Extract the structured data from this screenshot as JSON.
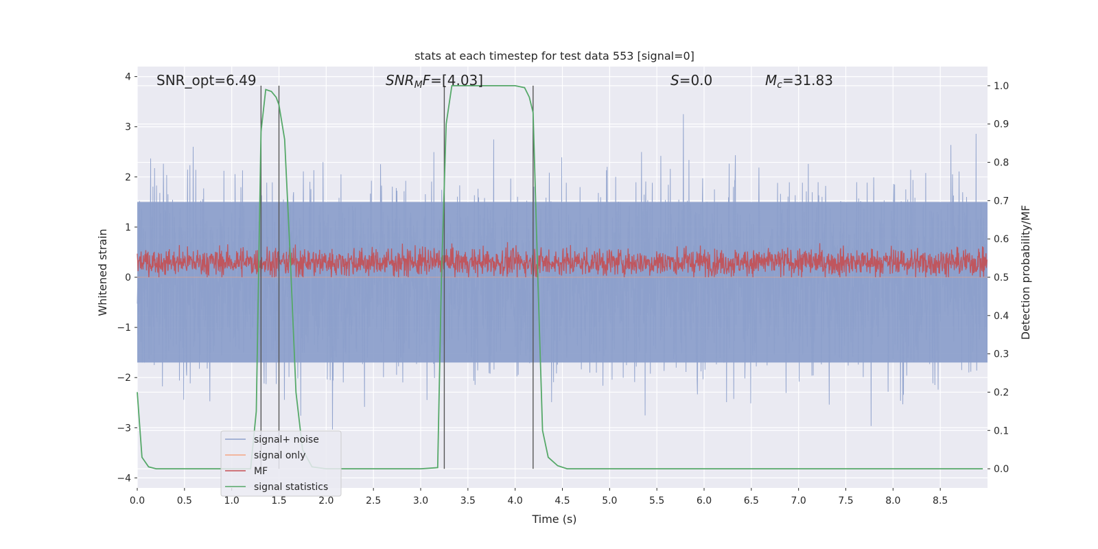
{
  "chart_data": {
    "type": "line",
    "title": "stats at each timestep for test data 553 [signal=0]",
    "xlabel": "Time (s)",
    "ylabel": "Whitened strain",
    "y2label": "Detection probability/MF",
    "xlim": [
      0.0,
      9.0
    ],
    "ylim": [
      -4.2,
      4.2
    ],
    "y2lim": [
      -0.05,
      1.05
    ],
    "x_ticks": [
      "0.0",
      "0.5",
      "1.0",
      "1.5",
      "2.0",
      "2.5",
      "3.0",
      "3.5",
      "4.0",
      "4.5",
      "5.0",
      "5.5",
      "6.0",
      "6.5",
      "7.0",
      "7.5",
      "8.0",
      "8.5"
    ],
    "y_ticks": [
      "4",
      "3",
      "2",
      "1",
      "0",
      "−1",
      "−2",
      "−3",
      "−4"
    ],
    "y2_ticks": [
      "1.0",
      "0.9",
      "0.8",
      "0.7",
      "0.6",
      "0.5",
      "0.4",
      "0.3",
      "0.2",
      "0.1",
      "0.0"
    ],
    "grid": true,
    "legend_position": "lower-left",
    "annotations": {
      "snr_opt": "SNR_opt=6.49",
      "snr_mf_var": "SNR",
      "snr_mf_sub": "M",
      "snr_mf_var2": "F",
      "snr_mf_rest": "=[4.03]",
      "s_var": "S",
      "s_rest": "=0.0",
      "mc_var": "M",
      "mc_sub": "c",
      "mc_rest": "=31.83"
    },
    "vertical_markers": [
      1.31,
      1.5,
      3.25,
      4.19
    ],
    "series": [
      {
        "name": "signal+ noise",
        "color": "#8da0cb",
        "noise_band": {
          "y_min": -4.0,
          "y_max": 3.8,
          "typical_low": -1.7,
          "typical_high": 1.5
        }
      },
      {
        "name": "signal only",
        "color": "#f4a582",
        "values_description_free": true,
        "x": [
          0.0,
          9.0
        ],
        "y": [
          0.0,
          0.0
        ]
      },
      {
        "name": "MF",
        "color": "#c44e52",
        "band": {
          "mean": 0.3,
          "low": 0.0,
          "high": 0.7
        }
      },
      {
        "name": "signal statistics",
        "color": "#55a868",
        "axis": "right",
        "x": [
          0.0,
          0.05,
          0.12,
          0.2,
          0.5,
          1.0,
          1.2,
          1.26,
          1.31,
          1.36,
          1.42,
          1.47,
          1.5,
          1.56,
          1.62,
          1.68,
          1.75,
          1.85,
          2.0,
          2.5,
          3.0,
          3.18,
          3.22,
          3.27,
          3.33,
          3.5,
          4.0,
          4.1,
          4.15,
          4.19,
          4.24,
          4.29,
          4.35,
          4.45,
          4.55,
          5.0,
          6.0,
          7.0,
          8.0,
          8.95
        ],
        "y": [
          0.2,
          0.03,
          0.005,
          0.0,
          0.0,
          0.0,
          0.0,
          0.15,
          0.88,
          0.99,
          0.985,
          0.97,
          0.95,
          0.86,
          0.55,
          0.2,
          0.05,
          0.005,
          0.0,
          0.0,
          0.0,
          0.003,
          0.5,
          0.9,
          1.0,
          1.0,
          1.0,
          0.995,
          0.97,
          0.93,
          0.5,
          0.1,
          0.03,
          0.008,
          0.0,
          0.0,
          0.0,
          0.0,
          0.0,
          0.0
        ]
      }
    ]
  }
}
